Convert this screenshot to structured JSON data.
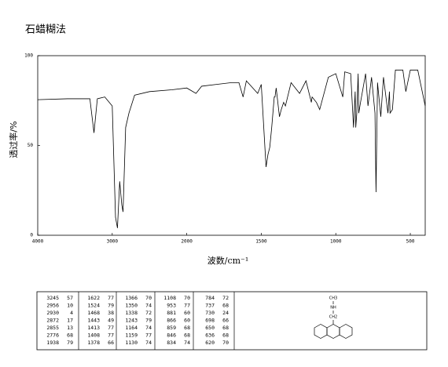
{
  "chart_data": {
    "type": "line",
    "title": "石蜡糊法",
    "x_label": "波数/cm⁻¹",
    "y_label": "透过率/%",
    "xlim": [
      4000,
      400
    ],
    "ylim": [
      0,
      100
    ],
    "x_scale_break": 2000,
    "x_scale_factor": 2,
    "xticks": [
      4000,
      3000,
      2000,
      1500,
      1000,
      500
    ],
    "yticks": [
      0,
      50,
      100
    ],
    "color": "#000000",
    "x": [
      4000,
      3600,
      3300,
      3245,
      3200,
      3100,
      3000,
      2956,
      2930,
      2900,
      2872,
      2855,
      2820,
      2776,
      2700,
      2500,
      2200,
      2000,
      1938,
      1900,
      1800,
      1700,
      1650,
      1622,
      1600,
      1524,
      1500,
      1468,
      1455,
      1443,
      1430,
      1413,
      1408,
      1400,
      1378,
      1366,
      1350,
      1338,
      1300,
      1243,
      1200,
      1164,
      1159,
      1130,
      1108,
      1050,
      1000,
      953,
      940,
      900,
      881,
      870,
      866,
      859,
      850,
      846,
      834,
      800,
      784,
      760,
      737,
      730,
      720,
      698,
      680,
      650,
      640,
      636,
      620,
      600,
      550,
      530,
      500,
      450,
      400
    ],
    "values": [
      75.5,
      76,
      76,
      57,
      76,
      77,
      72,
      10,
      4,
      30,
      17,
      13,
      60,
      68,
      78,
      80,
      81,
      82,
      79,
      83,
      84,
      85,
      85,
      77,
      86,
      79,
      84,
      38,
      45,
      49,
      60,
      77,
      77,
      82,
      66,
      70,
      74,
      72,
      85,
      79,
      86,
      74,
      77,
      74,
      70,
      88,
      90,
      77,
      91,
      90,
      60,
      80,
      60,
      68,
      90,
      68,
      74,
      90,
      72,
      88,
      68,
      24,
      85,
      66,
      88,
      68,
      80,
      68,
      70,
      92,
      92,
      80,
      92,
      92,
      72
    ]
  },
  "peak_table": {
    "columns": [
      [
        [
          3245,
          57
        ],
        [
          2956,
          10
        ],
        [
          2930,
          4
        ],
        [
          2872,
          17
        ],
        [
          2855,
          13
        ],
        [
          2776,
          68
        ],
        [
          1938,
          79
        ]
      ],
      [
        [
          1622,
          77
        ],
        [
          1524,
          79
        ],
        [
          1468,
          38
        ],
        [
          1443,
          49
        ],
        [
          1413,
          77
        ],
        [
          1408,
          77
        ],
        [
          1378,
          66
        ]
      ],
      [
        [
          1366,
          70
        ],
        [
          1350,
          74
        ],
        [
          1338,
          72
        ],
        [
          1243,
          79
        ],
        [
          1164,
          74
        ],
        [
          1159,
          77
        ],
        [
          1130,
          74
        ]
      ],
      [
        [
          1108,
          70
        ],
        [
          953,
          77
        ],
        [
          881,
          60
        ],
        [
          866,
          60
        ],
        [
          859,
          68
        ],
        [
          846,
          68
        ],
        [
          834,
          74
        ]
      ],
      [
        [
          784,
          72
        ],
        [
          737,
          68
        ],
        [
          730,
          24
        ],
        [
          698,
          66
        ],
        [
          650,
          68
        ],
        [
          636,
          68
        ],
        [
          620,
          70
        ]
      ]
    ]
  },
  "structure": {
    "labels": [
      "CH3",
      "NH",
      "CH2"
    ]
  }
}
